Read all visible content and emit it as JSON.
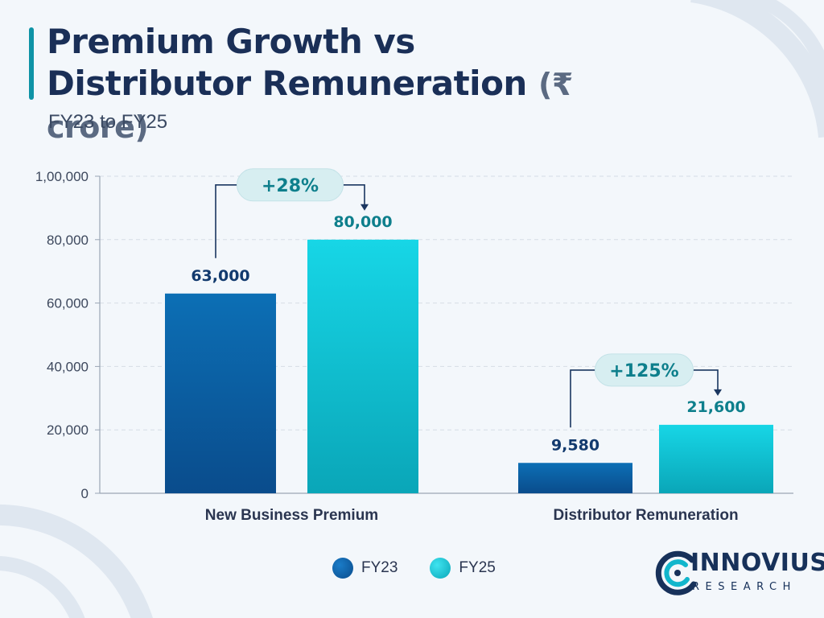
{
  "header": {
    "title_line1": "Premium Growth vs",
    "title_line2": "Distributor Remuneration",
    "title_unit": "(₹ crore)",
    "subtitle": "FY23 to FY25"
  },
  "chart_data": {
    "type": "bar",
    "categories": [
      "New Business Premium",
      "Distributor Remuneration"
    ],
    "series": [
      {
        "name": "FY23",
        "values": [
          63000,
          9580
        ],
        "labels": [
          "63,000",
          "9,580"
        ],
        "color": "#0b5ea3"
      },
      {
        "name": "FY25",
        "values": [
          80000,
          21600
        ],
        "labels": [
          "80,000",
          "21,600"
        ],
        "color": "#12c4d6"
      }
    ],
    "growth_labels": [
      "+28%",
      "+125%"
    ],
    "ylim": [
      0,
      100000
    ],
    "yticks": [
      0,
      20000,
      40000,
      60000,
      80000,
      100000
    ],
    "ytick_labels": [
      "0",
      "20,000",
      "40,000",
      "60,000",
      "80,000",
      "1,00,000"
    ],
    "grid": true,
    "legend_position": "bottom"
  },
  "legend": {
    "fy23": "FY23",
    "fy25": "FY25"
  },
  "colors": {
    "fy23": "#0b5ea3",
    "fy25": "#12c4d6",
    "accent": "#0e93a6",
    "label_fy23": "#123a6e",
    "label_fy25": "#0e7f8c"
  },
  "logo": {
    "name": "INNOVIUS",
    "subname": "RESEARCH"
  }
}
